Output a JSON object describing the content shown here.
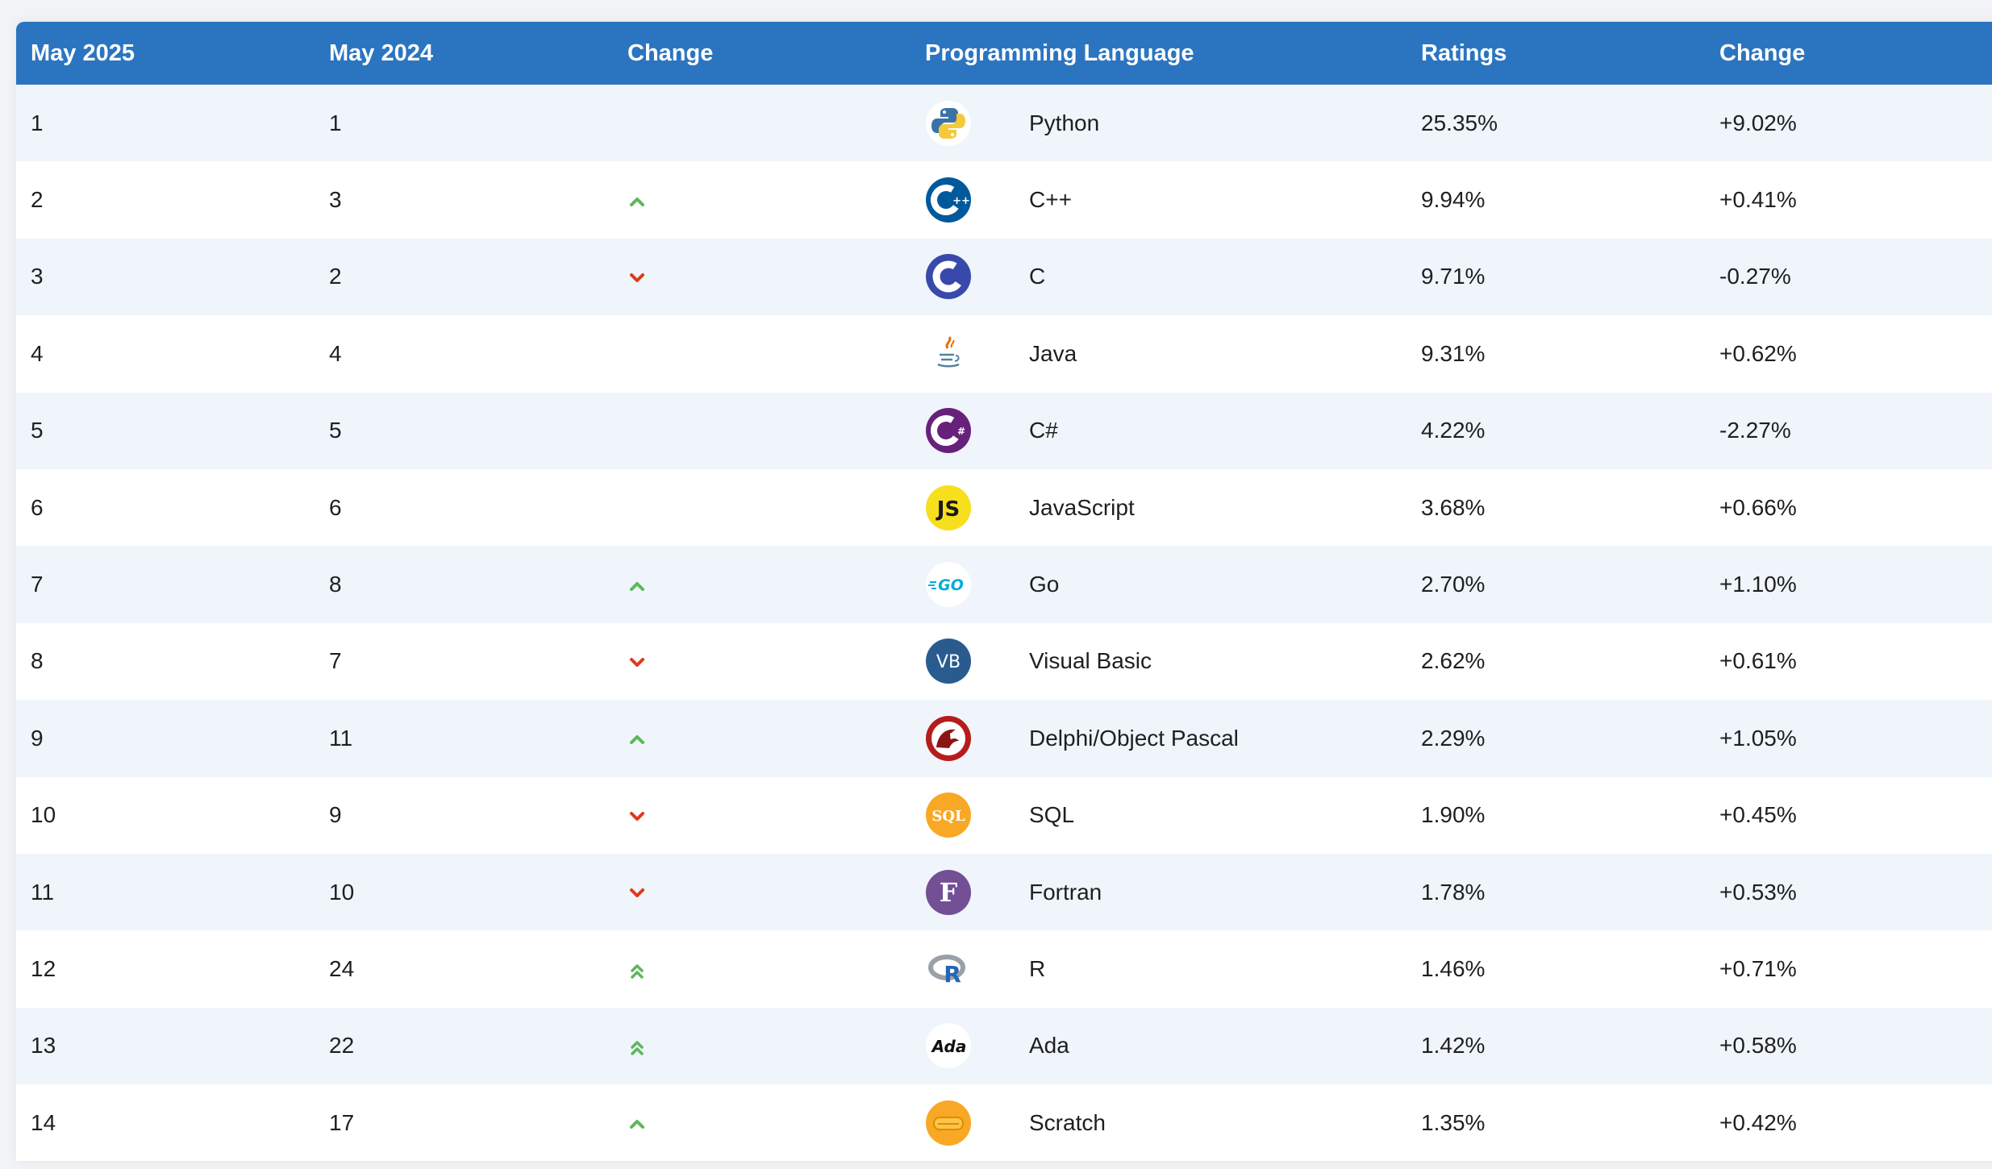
{
  "table": {
    "headers": {
      "rank_now": "May 2025",
      "rank_prev": "May 2024",
      "change": "Change",
      "language": "Programming Language",
      "ratings": "Ratings",
      "ratings_change": "Change"
    },
    "rows": [
      {
        "rank": "1",
        "prev": "1",
        "trend": "none",
        "language": "Python",
        "logo": "python-logo-icon",
        "rating": "25.35%",
        "delta": "+9.02%"
      },
      {
        "rank": "2",
        "prev": "3",
        "trend": "up",
        "language": "C++",
        "logo": "cplusplus-logo-icon",
        "rating": "9.94%",
        "delta": "+0.41%"
      },
      {
        "rank": "3",
        "prev": "2",
        "trend": "down",
        "language": "C",
        "logo": "c-logo-icon",
        "rating": "9.71%",
        "delta": "-0.27%"
      },
      {
        "rank": "4",
        "prev": "4",
        "trend": "none",
        "language": "Java",
        "logo": "java-logo-icon",
        "rating": "9.31%",
        "delta": "+0.62%"
      },
      {
        "rank": "5",
        "prev": "5",
        "trend": "none",
        "language": "C#",
        "logo": "csharp-logo-icon",
        "rating": "4.22%",
        "delta": "-2.27%"
      },
      {
        "rank": "6",
        "prev": "6",
        "trend": "none",
        "language": "JavaScript",
        "logo": "javascript-logo-icon",
        "rating": "3.68%",
        "delta": "+0.66%"
      },
      {
        "rank": "7",
        "prev": "8",
        "trend": "up",
        "language": "Go",
        "logo": "go-logo-icon",
        "rating": "2.70%",
        "delta": "+1.10%"
      },
      {
        "rank": "8",
        "prev": "7",
        "trend": "down",
        "language": "Visual Basic",
        "logo": "visual-basic-logo-icon",
        "rating": "2.62%",
        "delta": "+0.61%"
      },
      {
        "rank": "9",
        "prev": "11",
        "trend": "up",
        "language": "Delphi/Object Pascal",
        "logo": "delphi-logo-icon",
        "rating": "2.29%",
        "delta": "+1.05%"
      },
      {
        "rank": "10",
        "prev": "9",
        "trend": "down",
        "language": "SQL",
        "logo": "sql-logo-icon",
        "rating": "1.90%",
        "delta": "+0.45%"
      },
      {
        "rank": "11",
        "prev": "10",
        "trend": "down",
        "language": "Fortran",
        "logo": "fortran-logo-icon",
        "rating": "1.78%",
        "delta": "+0.53%"
      },
      {
        "rank": "12",
        "prev": "24",
        "trend": "up2",
        "language": "R",
        "logo": "r-logo-icon",
        "rating": "1.46%",
        "delta": "+0.71%"
      },
      {
        "rank": "13",
        "prev": "22",
        "trend": "up2",
        "language": "Ada",
        "logo": "ada-logo-icon",
        "rating": "1.42%",
        "delta": "+0.58%"
      },
      {
        "rank": "14",
        "prev": "17",
        "trend": "up",
        "language": "Scratch",
        "logo": "scratch-logo-icon",
        "rating": "1.35%",
        "delta": "+0.42%"
      }
    ]
  },
  "colors": {
    "header_bg": "#2b75c0",
    "up": "#5cb85c",
    "down": "#e0381e"
  },
  "logo_text": {
    "js": "JS",
    "go": "GO",
    "vb": "VB",
    "sql": "SQL",
    "fortran": "F",
    "r": "R",
    "ada": "Ada"
  }
}
